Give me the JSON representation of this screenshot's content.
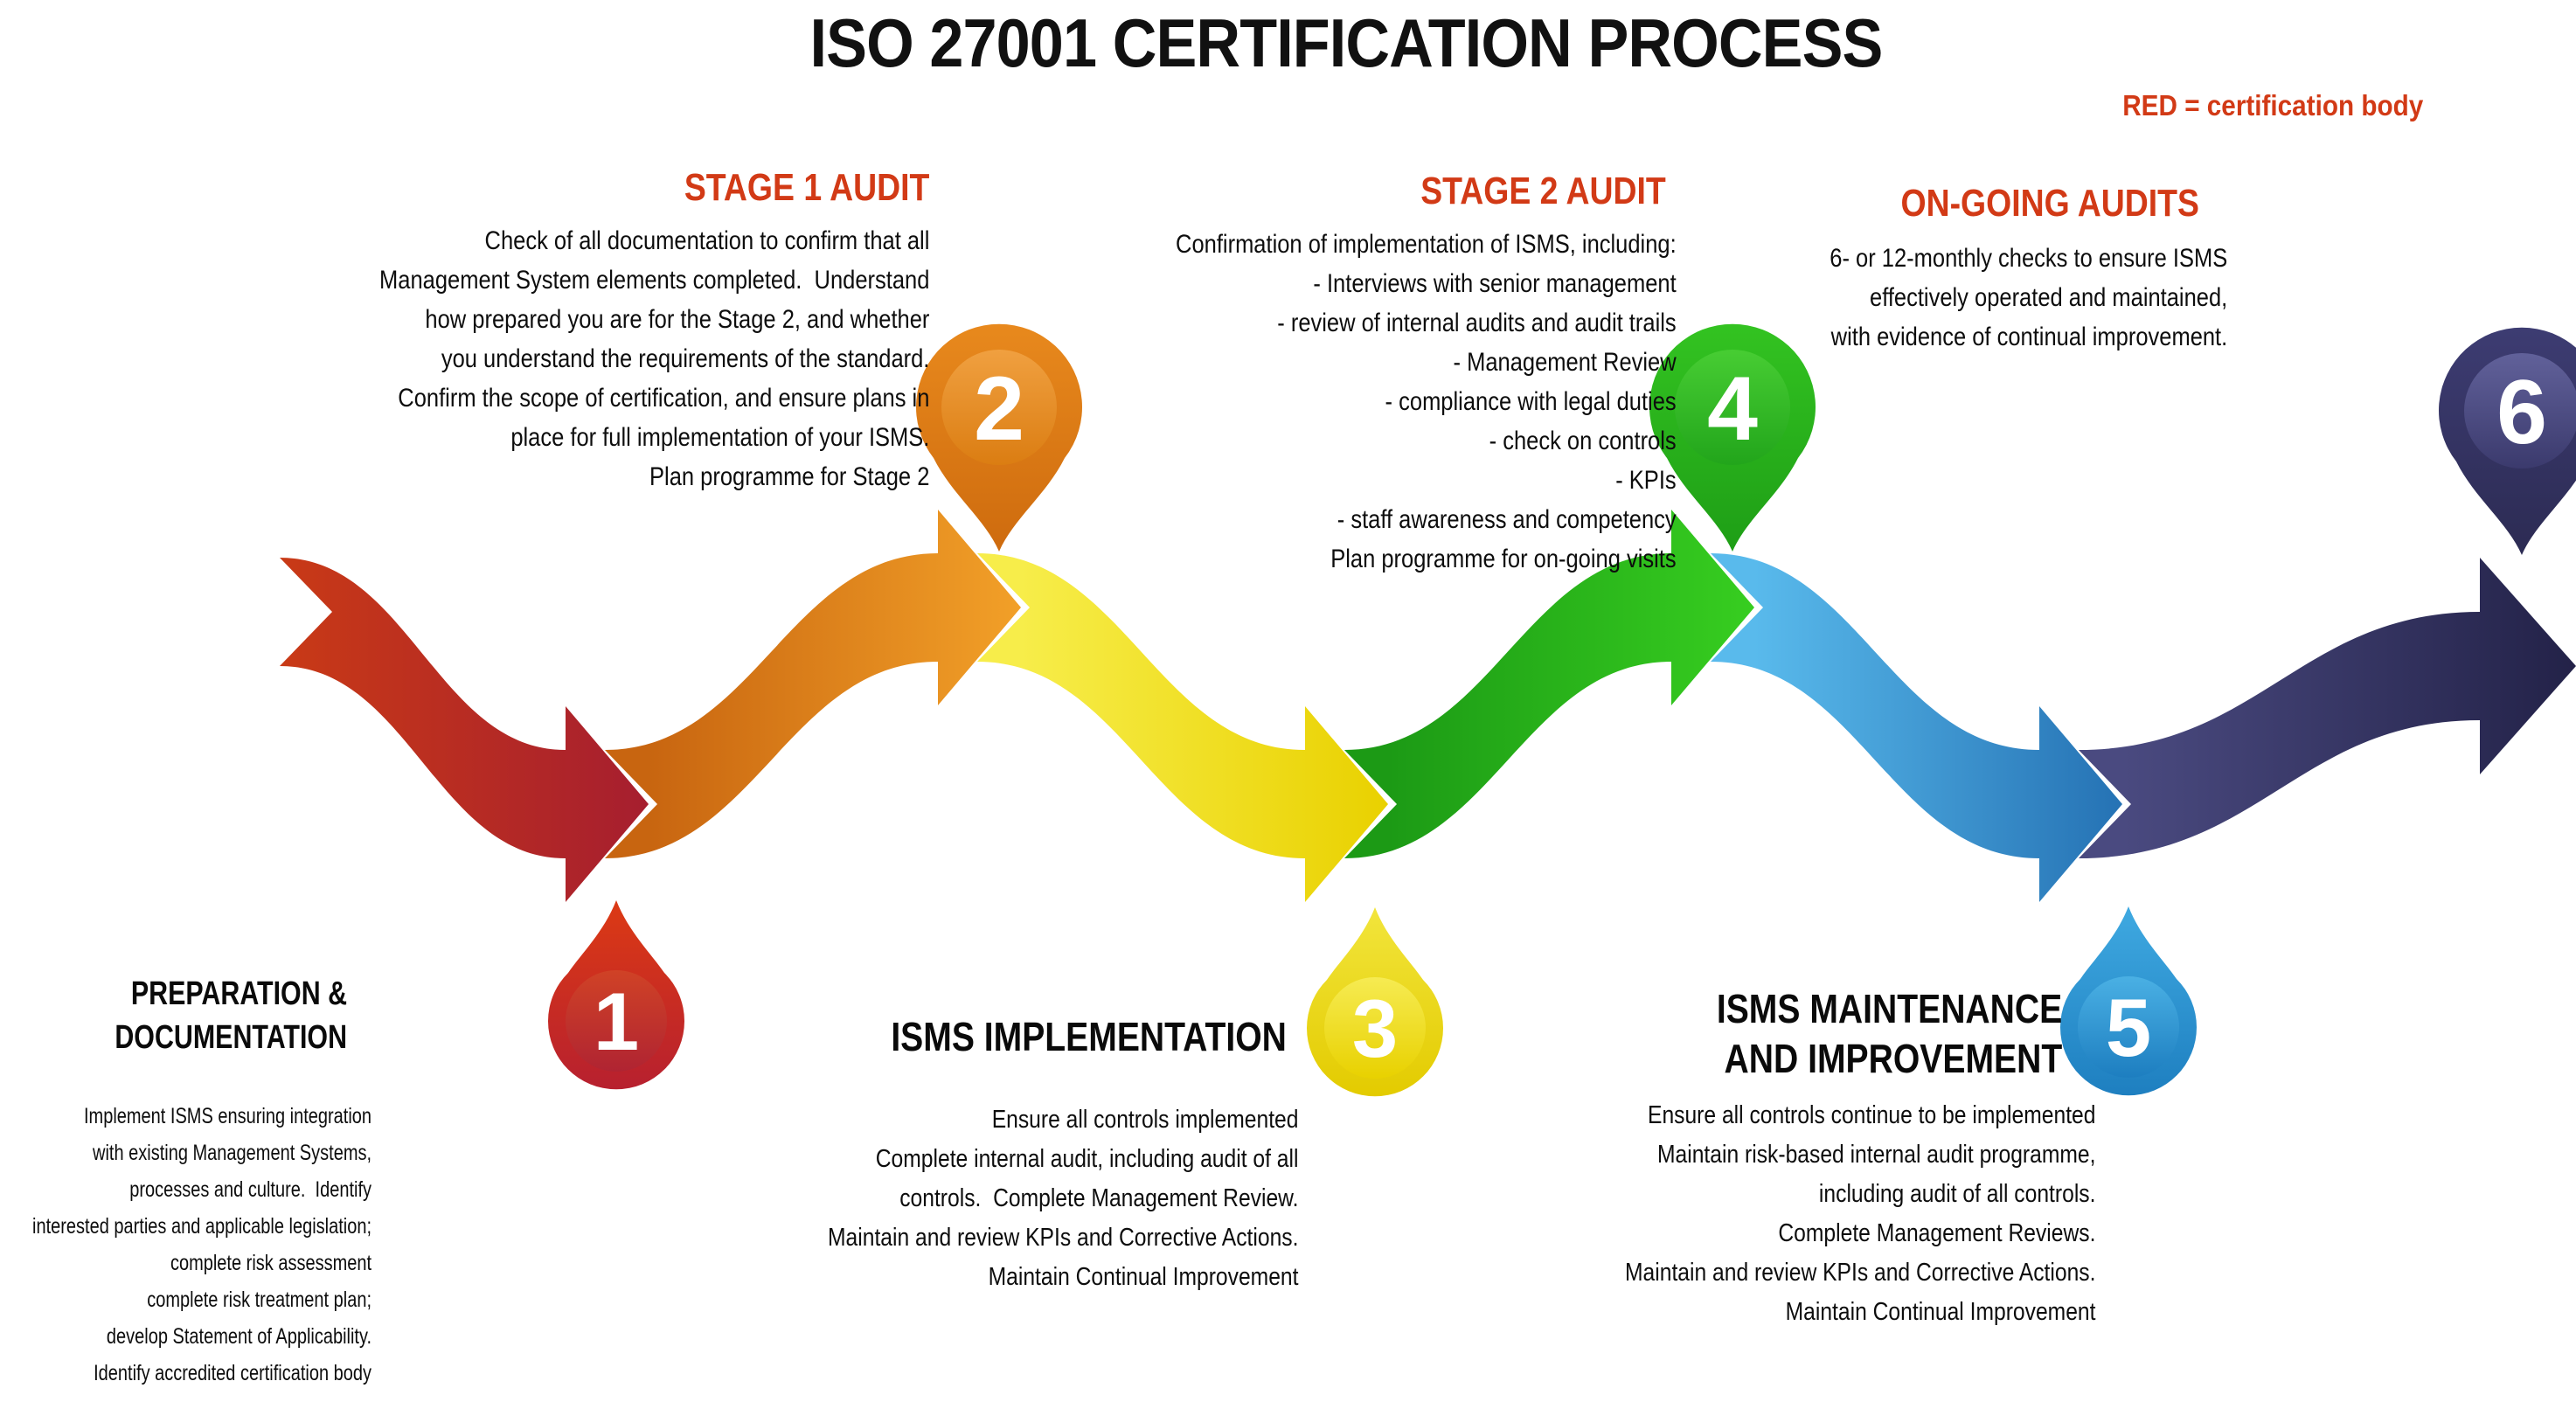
{
  "title": "ISO 27001 CERTIFICATION PROCESS",
  "legend": "RED = certification body",
  "top_sections": [
    {
      "heading": "STAGE 1 AUDIT",
      "lines": [
        "Check of all documentation to confirm that all",
        "Management System elements completed.  Understand",
        "how prepared you are for the Stage 2, and whether",
        "you understand the requirements of the standard.",
        "Confirm the scope of certification, and ensure plans in",
        "place for full implementation of your ISMS.",
        "Plan programme for Stage 2"
      ]
    },
    {
      "heading": "STAGE 2 AUDIT",
      "lines": [
        "Confirmation of implementation of ISMS, including:",
        "- Interviews with senior management",
        "- review of internal audits and audit trails",
        "- Management Review",
        "- compliance with legal duties",
        "- check on controls",
        "- KPIs",
        "- staff awareness and competency",
        "Plan programme for on-going visits"
      ]
    },
    {
      "heading": "ON-GOING AUDITS",
      "lines": [
        "6- or 12-monthly checks to ensure ISMS",
        "effectively operated and maintained,",
        "with evidence of continual improvement."
      ]
    }
  ],
  "bottom_sections": [
    {
      "heading_lines": [
        "PREPARATION &",
        "DOCUMENTATION"
      ],
      "lines": [
        "Implement ISMS ensuring integration",
        "with existing Management Systems,",
        "processes and culture.  Identify",
        "interested parties and applicable legislation;",
        "complete risk assessment",
        "complete risk treatment plan;",
        "develop Statement of Applicability.",
        "Identify accredited certification body"
      ]
    },
    {
      "heading_lines": [
        "ISMS IMPLEMENTATION"
      ],
      "lines": [
        "Ensure all controls implemented",
        "Complete internal audit, including audit of all",
        "controls.  Complete Management Review.",
        "Maintain and review KPIs and Corrective Actions.",
        "Maintain Continual Improvement"
      ]
    },
    {
      "heading_lines": [
        "ISMS MAINTENANCE",
        "AND IMPROVEMENT"
      ],
      "lines": [
        "Ensure all controls continue to be implemented",
        "Maintain risk-based internal audit programme,",
        "including audit of all controls.",
        "Complete Management Reviews.",
        "Maintain and review KPIs and Corrective Actions.",
        "Maintain Continual Improvement"
      ]
    }
  ],
  "markers": [
    {
      "num": "1"
    },
    {
      "num": "2"
    },
    {
      "num": "3"
    },
    {
      "num": "4"
    },
    {
      "num": "5"
    },
    {
      "num": "6"
    }
  ],
  "palette": {
    "heading_red": "#D23A16",
    "flow": {
      "red_start": "#C93A16",
      "red_end": "#A61E2F",
      "orange_start": "#C86510",
      "orange_end": "#F2A028",
      "yellow_start": "#F7ED4A",
      "yellow_end": "#E9D100",
      "green_start": "#1C9A15",
      "green_end": "#37CE20",
      "blue_start": "#59BAEC",
      "blue_end": "#2572B4",
      "navy_start": "#4A4A80",
      "navy_end": "#232248"
    },
    "markers": {
      "m1_top": "#DC3A14",
      "m1_bot": "#B7202F",
      "m1i_top": "#D04226",
      "m1i_bot": "#B02432",
      "m2_top": "#E8891D",
      "m2_bot": "#CE6B0E",
      "m2i_top": "#F0A040",
      "m2i_bot": "#DB7D12",
      "m3_top": "#F2E53C",
      "m3_bot": "#E3CB00",
      "m3i_top": "#F6EB52",
      "m3i_bot": "#E8D100",
      "m4_top": "#33C321",
      "m4_bot": "#1E9E16",
      "m4i_top": "#47CD33",
      "m4i_bot": "#22A51B",
      "m5_top": "#3FA9E1",
      "m5_bot": "#1E7FC0",
      "m5i_top": "#4AB0E4",
      "m5i_bot": "#1D7EC0",
      "m6_top": "#3D3C72",
      "m6_bot": "#2C2B53",
      "m6i_top": "#61619A",
      "m6i_bot": "#3B3A6D"
    }
  }
}
